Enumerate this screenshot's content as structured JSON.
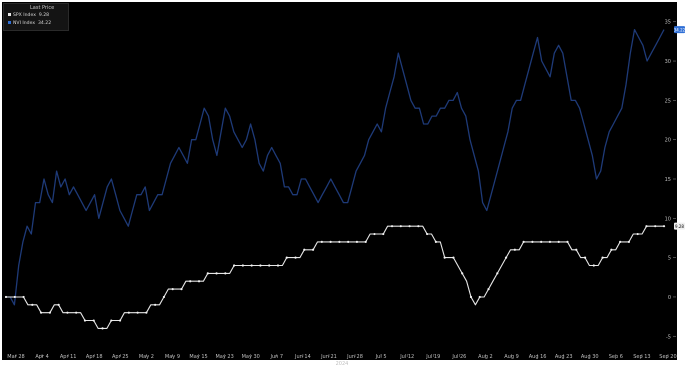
{
  "chart_data": {
    "type": "line",
    "legend_title": "Last Price",
    "legend_position": "top-left",
    "grid": false,
    "xlabel": "2024",
    "x_ticks": [
      "Mar 28",
      "Apr 4",
      "Apr 11",
      "Apr 18",
      "Apr 25",
      "May 2",
      "May 9",
      "May 15",
      "May 23",
      "May 30",
      "Jun 7",
      "Jun 14",
      "Jun 21",
      "Jun 28",
      "Jul 5",
      "Jul 12",
      "Jul 19",
      "Jul 26",
      "Aug 2",
      "Aug 9",
      "Aug 16",
      "Aug 23",
      "Aug 30",
      "Sep 6",
      "Sep 13",
      "Sep 20"
    ],
    "y_ticks": [
      -5,
      0,
      5,
      10,
      15,
      20,
      25,
      30,
      35
    ],
    "ylim": [
      -7,
      37
    ],
    "series": [
      {
        "name": "NVI Index",
        "last_label": "34.22",
        "color": "#1e3a78",
        "values": [
          0,
          0,
          -1,
          4,
          7,
          9,
          8,
          12,
          12,
          15,
          13,
          12,
          16,
          14,
          15,
          13,
          14,
          13,
          12,
          11,
          12,
          13,
          10,
          12,
          14,
          15,
          13,
          11,
          10,
          9,
          11,
          13,
          13,
          14,
          11,
          12,
          13,
          13,
          15,
          17,
          18,
          19,
          18,
          17,
          20,
          20,
          22,
          24,
          23,
          20,
          18,
          21,
          24,
          23,
          21,
          20,
          19,
          20,
          22,
          20,
          17,
          16,
          18,
          19,
          18,
          17,
          14,
          14,
          13,
          13,
          15,
          15,
          14,
          13,
          12,
          13,
          14,
          15,
          14,
          13,
          12,
          12,
          14,
          16,
          17,
          18,
          20,
          21,
          22,
          21,
          24,
          26,
          28,
          31,
          29,
          27,
          25,
          24,
          24,
          22,
          22,
          23,
          23,
          24,
          24,
          25,
          25,
          26,
          24,
          23,
          20,
          18,
          16,
          12,
          11,
          13,
          15,
          17,
          19,
          21,
          24,
          25,
          25,
          27,
          29,
          31,
          33,
          30,
          29,
          28,
          31,
          32,
          31,
          28,
          25,
          25,
          24,
          22,
          20,
          18,
          15,
          16,
          19,
          21,
          22,
          23,
          24,
          27,
          31,
          34,
          33,
          32,
          30,
          31,
          32,
          33,
          34
        ]
      },
      {
        "name": "SPX Index",
        "last_label": "9.28",
        "color": "#e6e6e6",
        "values": [
          0,
          0,
          0,
          0,
          0,
          -1,
          -1,
          -1,
          -2,
          -2,
          -2,
          -1,
          -1,
          -2,
          -2,
          -2,
          -2,
          -2,
          -3,
          -3,
          -3,
          -4,
          -4,
          -4,
          -3,
          -3,
          -3,
          -2,
          -2,
          -2,
          -2,
          -2,
          -2,
          -1,
          -1,
          -1,
          0,
          1,
          1,
          1,
          1,
          2,
          2,
          2,
          2,
          2,
          3,
          3,
          3,
          3,
          3,
          3,
          4,
          4,
          4,
          4,
          4,
          4,
          4,
          4,
          4,
          4,
          4,
          4,
          5,
          5,
          5,
          5,
          6,
          6,
          6,
          7,
          7,
          7,
          7,
          7,
          7,
          7,
          7,
          7,
          7,
          7,
          7,
          8,
          8,
          8,
          8,
          9,
          9,
          9,
          9,
          9,
          9,
          9,
          9,
          9,
          8,
          8,
          7,
          7,
          5,
          5,
          5,
          4,
          3,
          2,
          0,
          -1,
          0,
          0,
          1,
          2,
          3,
          4,
          5,
          6,
          6,
          6,
          7,
          7,
          7,
          7,
          7,
          7,
          7,
          7,
          7,
          7,
          7,
          6,
          6,
          5,
          5,
          4,
          4,
          4,
          5,
          5,
          6,
          6,
          7,
          7,
          7,
          8,
          8,
          8,
          9,
          9,
          9,
          9,
          9
        ]
      }
    ]
  }
}
